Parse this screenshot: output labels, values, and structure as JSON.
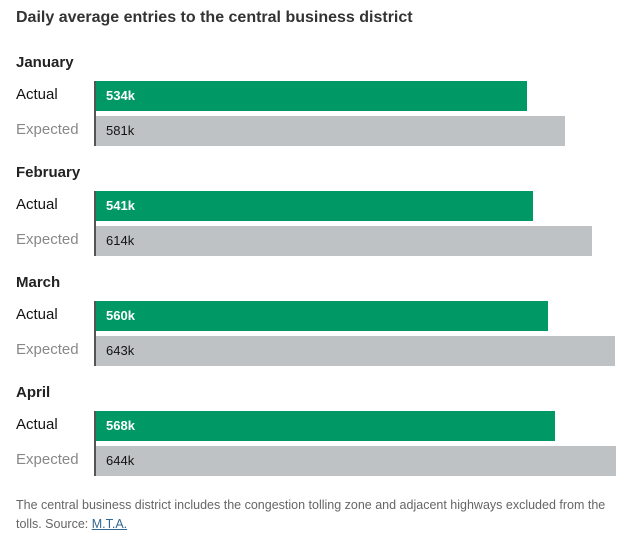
{
  "chart_data": {
    "type": "bar",
    "orientation": "horizontal",
    "title": "Daily average entries to the central business district",
    "categories": [
      "January",
      "February",
      "March",
      "April"
    ],
    "series": [
      {
        "name": "Actual",
        "values": [
          534,
          541,
          560,
          568
        ],
        "labels": [
          "534k",
          "541k",
          "560k",
          "568k"
        ],
        "color": "#009966"
      },
      {
        "name": "Expected",
        "values": [
          581,
          614,
          643,
          644
        ],
        "labels": [
          "581k",
          "614k",
          "643k",
          "644k"
        ],
        "color": "#bfc2c5"
      }
    ],
    "unit": "thousands",
    "xlim": [
      0,
      644
    ]
  },
  "footnote": {
    "text": "The central business district includes the congestion tolling zone and adjacent highways excluded from the tolls. Source: ",
    "source_link": "M.T.A."
  }
}
